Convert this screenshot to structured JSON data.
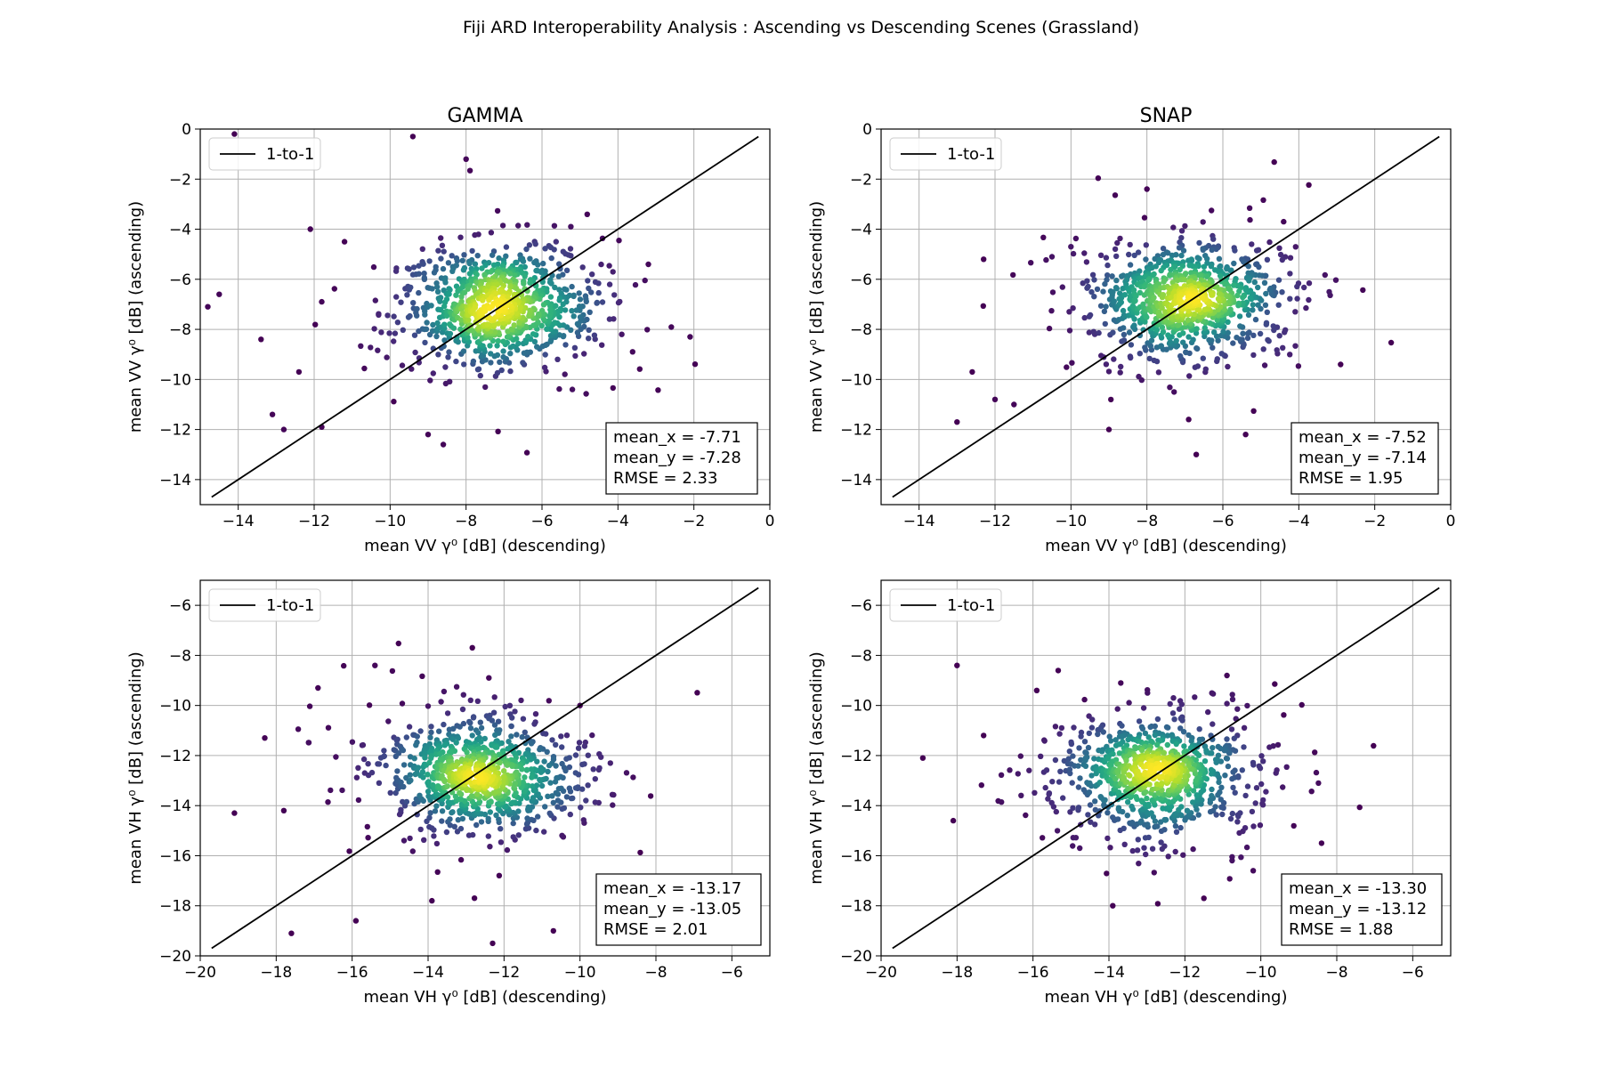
{
  "suptitle": "Fiji ARD Interoperability Analysis : Ascending vs Descending Scenes (Grassland)",
  "colors": {
    "low": "#440154",
    "high": "#fde725",
    "line": "#000000",
    "grid": "#b0b0b0"
  },
  "chart_data": [
    {
      "type": "scatter",
      "title": "GAMMA",
      "xlabel": "mean VV γ⁰ [dB] (descending)",
      "ylabel": "mean VV γ⁰ [dB] (ascending)",
      "xlim": [
        -15,
        0
      ],
      "ylim": [
        -15,
        0
      ],
      "xticks": [
        -14,
        -12,
        -10,
        -8,
        -6,
        -4,
        -2,
        0
      ],
      "yticks": [
        -14,
        -12,
        -10,
        -8,
        -6,
        -4,
        -2,
        0
      ],
      "xtick_labels": [
        "−14",
        "−12",
        "−10",
        "−8",
        "−6",
        "−4",
        "−2",
        "0"
      ],
      "ytick_labels": [
        "−14",
        "−12",
        "−10",
        "−8",
        "−6",
        "−4",
        "−2",
        "0"
      ],
      "grid": true,
      "legend": "upper left",
      "legend_label": "1-to-1",
      "one_to_one": [
        -14.7,
        -0.3
      ],
      "cloud": {
        "mean_x": -7.71,
        "mean_y": -7.28,
        "n": 900,
        "seed": 11
      },
      "stats": [
        "mean_x = -7.71",
        "mean_y = -7.28",
        "RMSE = 2.33"
      ],
      "outliers": [
        [
          -14.8,
          -7.1
        ],
        [
          -14.1,
          -0.2
        ],
        [
          -14.5,
          -6.6
        ],
        [
          -12.1,
          -4.0
        ],
        [
          -11.2,
          -4.5
        ],
        [
          -9.4,
          -0.3
        ],
        [
          -8.0,
          -1.2
        ],
        [
          -2.1,
          -8.3
        ],
        [
          -13.1,
          -11.4
        ],
        [
          -12.8,
          -12.0
        ],
        [
          -11.8,
          -11.9
        ],
        [
          -8.6,
          -12.6
        ],
        [
          -9.0,
          -12.2
        ],
        [
          -3.9,
          -8.2
        ],
        [
          -5.2,
          -10.4
        ],
        [
          -13.4,
          -8.4
        ],
        [
          -12.4,
          -9.7
        ],
        [
          -11.8,
          -6.9
        ]
      ]
    },
    {
      "type": "scatter",
      "title": "SNAP",
      "xlabel": "mean VV γ⁰ [dB] (descending)",
      "ylabel": "mean VV γ⁰ [dB] (ascending)",
      "xlim": [
        -15,
        0
      ],
      "ylim": [
        -15,
        0
      ],
      "xticks": [
        -14,
        -12,
        -10,
        -8,
        -6,
        -4,
        -2,
        0
      ],
      "yticks": [
        -14,
        -12,
        -10,
        -8,
        -6,
        -4,
        -2,
        0
      ],
      "xtick_labels": [
        "−14",
        "−12",
        "−10",
        "−8",
        "−6",
        "−4",
        "−2",
        "0"
      ],
      "ytick_labels": [
        "−14",
        "−12",
        "−10",
        "−8",
        "−6",
        "−4",
        "−2",
        "0"
      ],
      "grid": true,
      "legend": "upper left",
      "legend_label": "1-to-1",
      "one_to_one": [
        -14.7,
        -0.3
      ],
      "cloud": {
        "mean_x": -7.52,
        "mean_y": -7.14,
        "n": 900,
        "seed": 23
      },
      "stats": [
        "mean_x = -7.52",
        "mean_y = -7.14",
        "RMSE = 1.95"
      ],
      "outliers": [
        [
          -13.0,
          -11.7
        ],
        [
          -12.6,
          -9.7
        ],
        [
          -12.3,
          -5.2
        ],
        [
          -10.5,
          -5.1
        ],
        [
          -10.0,
          -4.7
        ],
        [
          -8.0,
          -2.4
        ],
        [
          -6.7,
          -13.0
        ],
        [
          -6.9,
          -11.6
        ],
        [
          -5.4,
          -12.2
        ],
        [
          -2.9,
          -9.4
        ],
        [
          -3.2,
          -6.5
        ],
        [
          -12.0,
          -10.8
        ],
        [
          -11.5,
          -11.0
        ],
        [
          -9.0,
          -12.0
        ]
      ]
    },
    {
      "type": "scatter",
      "title": "",
      "xlabel": "mean VH γ⁰ [dB] (descending)",
      "ylabel": "mean VH γ⁰ [dB] (ascending)",
      "xlim": [
        -20,
        -5
      ],
      "ylim": [
        -20,
        -5
      ],
      "xticks": [
        -20,
        -18,
        -16,
        -14,
        -12,
        -10,
        -8,
        -6
      ],
      "yticks": [
        -20,
        -18,
        -16,
        -14,
        -12,
        -10,
        -8,
        -6
      ],
      "xtick_labels": [
        "−20",
        "−18",
        "−16",
        "−14",
        "−12",
        "−10",
        "−8",
        "−6"
      ],
      "ytick_labels": [
        "−20",
        "−18",
        "−16",
        "−14",
        "−12",
        "−10",
        "−8",
        "−6"
      ],
      "grid": true,
      "legend": "upper left",
      "legend_label": "1-to-1",
      "one_to_one": [
        -19.7,
        -5.3
      ],
      "cloud": {
        "mean_x": -13.17,
        "mean_y": -13.05,
        "n": 900,
        "seed": 37
      },
      "stats": [
        "mean_x = -13.17",
        "mean_y = -13.05",
        "RMSE = 2.01"
      ],
      "outliers": [
        [
          -19.1,
          -14.3
        ],
        [
          -18.3,
          -11.3
        ],
        [
          -17.6,
          -19.1
        ],
        [
          -15.9,
          -18.6
        ],
        [
          -13.9,
          -17.8
        ],
        [
          -12.3,
          -19.5
        ],
        [
          -10.7,
          -19.0
        ],
        [
          -9.2,
          -12.3
        ],
        [
          -15.4,
          -8.4
        ],
        [
          -12.4,
          -8.9
        ],
        [
          -17.8,
          -14.2
        ],
        [
          -16.9,
          -9.3
        ],
        [
          -10.0,
          -10.0
        ]
      ]
    },
    {
      "type": "scatter",
      "title": "",
      "xlabel": "mean VH γ⁰ [dB] (descending)",
      "ylabel": "mean VH γ⁰ [dB] (ascending)",
      "xlim": [
        -20,
        -5
      ],
      "ylim": [
        -20,
        -5
      ],
      "xticks": [
        -20,
        -18,
        -16,
        -14,
        -12,
        -10,
        -8,
        -6
      ],
      "yticks": [
        -20,
        -18,
        -16,
        -14,
        -12,
        -10,
        -8,
        -6
      ],
      "xtick_labels": [
        "−20",
        "−18",
        "−16",
        "−14",
        "−12",
        "−10",
        "−8",
        "−6"
      ],
      "ytick_labels": [
        "−20",
        "−18",
        "−16",
        "−14",
        "−12",
        "−10",
        "−8",
        "−6"
      ],
      "grid": true,
      "legend": "upper left",
      "legend_label": "1-to-1",
      "one_to_one": [
        -19.7,
        -5.3
      ],
      "cloud": {
        "mean_x": -13.3,
        "mean_y": -13.12,
        "n": 900,
        "seed": 51
      },
      "stats": [
        "mean_x = -13.30",
        "mean_y = -13.12",
        "RMSE = 1.88"
      ],
      "outliers": [
        [
          -18.9,
          -12.1
        ],
        [
          -18.0,
          -8.4
        ],
        [
          -18.1,
          -14.6
        ],
        [
          -8.4,
          -15.5
        ],
        [
          -13.9,
          -18.0
        ],
        [
          -11.5,
          -17.7
        ],
        [
          -9.6,
          -12.7
        ],
        [
          -17.3,
          -11.2
        ],
        [
          -15.9,
          -9.4
        ],
        [
          -10.2,
          -16.6
        ],
        [
          -12.3,
          -9.7
        ]
      ]
    }
  ]
}
